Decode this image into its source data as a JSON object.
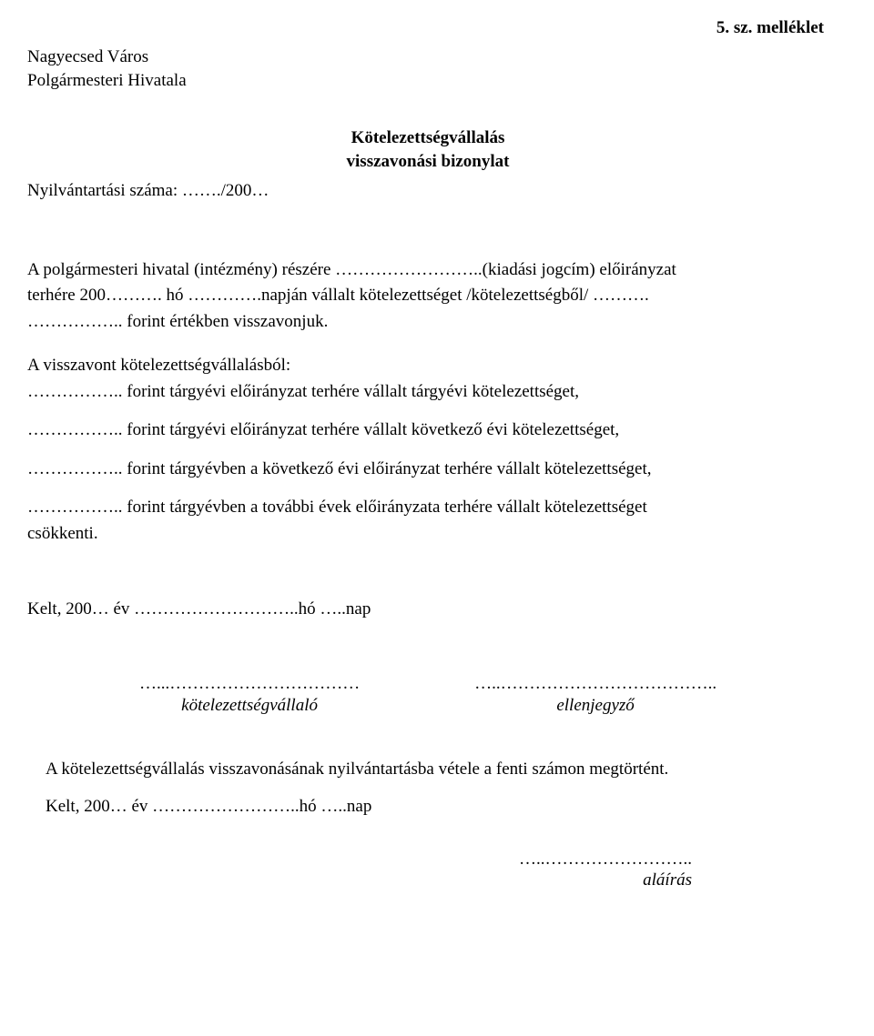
{
  "attachment": "5. sz. melléklet",
  "org": {
    "line1": "Nagyecsed Város",
    "line2": "Polgármesteri Hivatala"
  },
  "title": {
    "line1": "Kötelezettségvállalás",
    "line2": "visszavonási bizonylat"
  },
  "reg_number": "Nyilvántartási száma: ……./200…",
  "para1": {
    "line1": "A polgármesteri hivatal (intézmény) részére ……………………..(kiadási jogcím) előirányzat",
    "line2": "terhére 200………. hó ………….napján vállalt kötelezettséget /kötelezettségből/ ……….",
    "line3": "…………….. forint értékben visszavonjuk."
  },
  "para2_intro": "A visszavont kötelezettségvállalásból:",
  "para2_l1": "…………….. forint tárgyévi előirányzat terhére vállalt tárgyévi kötelezettséget,",
  "para2_l2": "…………….. forint tárgyévi előirányzat terhére vállalt következő évi kötelezettséget,",
  "para2_l3": "…………….. forint tárgyévben a következő évi előirányzat terhére vállalt kötelezettséget,",
  "para2_l4a": "…………….. forint tárgyévben a további évek előirányzata terhére vállalt kötelezettséget",
  "para2_l4b": "csökkenti.",
  "date1": "Kelt, 200… év ………………………..hó …..nap",
  "sig": {
    "left_dots": "…...……………………………",
    "left_label": "kötelezettségvállaló",
    "right_dots": "…..………………………………..",
    "right_label": "ellenjegyző"
  },
  "confirm": "A kötelezettségvállalás visszavonásának nyilvántartásba vétele a fenti számon megtörtént.",
  "date2": "Kelt, 200… év ……………………..hó …..nap",
  "alairas_dots": "…..……………………..",
  "alairas_label": "aláírás"
}
